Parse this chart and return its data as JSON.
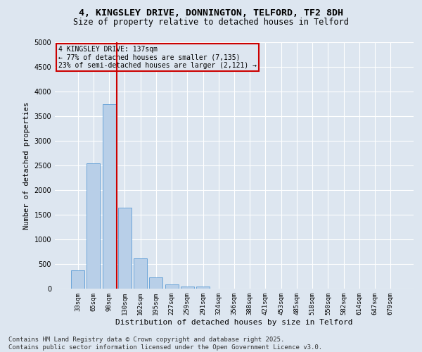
{
  "title_line1": "4, KINGSLEY DRIVE, DONNINGTON, TELFORD, TF2 8DH",
  "title_line2": "Size of property relative to detached houses in Telford",
  "xlabel": "Distribution of detached houses by size in Telford",
  "ylabel": "Number of detached properties",
  "categories": [
    "33sqm",
    "65sqm",
    "98sqm",
    "130sqm",
    "162sqm",
    "195sqm",
    "227sqm",
    "259sqm",
    "291sqm",
    "324sqm",
    "356sqm",
    "388sqm",
    "421sqm",
    "453sqm",
    "485sqm",
    "518sqm",
    "550sqm",
    "582sqm",
    "614sqm",
    "647sqm",
    "679sqm"
  ],
  "values": [
    370,
    2540,
    3750,
    1650,
    615,
    230,
    90,
    50,
    40,
    0,
    0,
    0,
    0,
    0,
    0,
    0,
    0,
    0,
    0,
    0,
    0
  ],
  "bar_color": "#b8cfe8",
  "bar_edgecolor": "#5b9bd5",
  "vline_color": "#cc0000",
  "annotation_text": "4 KINGSLEY DRIVE: 137sqm\n← 77% of detached houses are smaller (7,135)\n23% of semi-detached houses are larger (2,121) →",
  "annotation_box_color": "#cc0000",
  "ylim": [
    0,
    5000
  ],
  "yticks": [
    0,
    500,
    1000,
    1500,
    2000,
    2500,
    3000,
    3500,
    4000,
    4500,
    5000
  ],
  "background_color": "#dde6f0",
  "grid_color": "#ffffff",
  "footer_line1": "Contains HM Land Registry data © Crown copyright and database right 2025.",
  "footer_line2": "Contains public sector information licensed under the Open Government Licence v3.0."
}
